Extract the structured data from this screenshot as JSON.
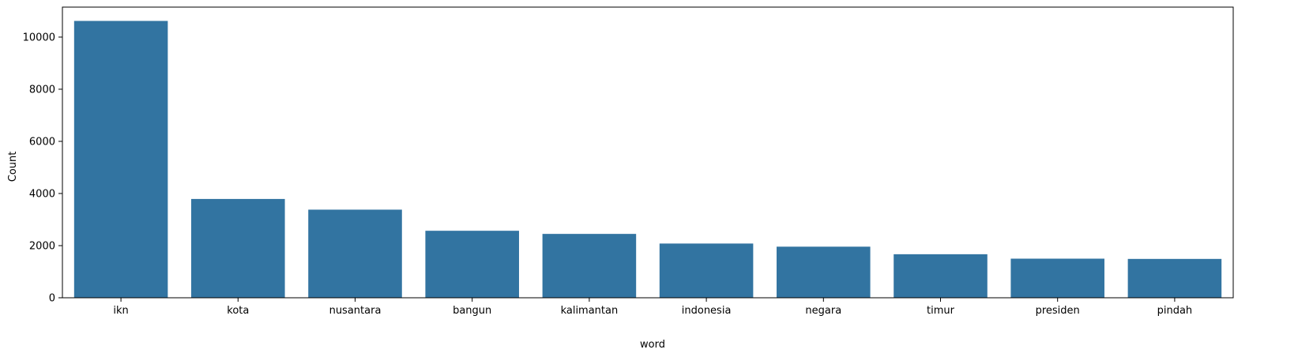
{
  "chart_data": {
    "type": "bar",
    "title": "",
    "xlabel": "word",
    "ylabel": "Count",
    "categories": [
      "ikn",
      "kota",
      "nusantara",
      "bangun",
      "kalimantan",
      "indonesia",
      "negara",
      "timur",
      "presiden",
      "pindah"
    ],
    "values": [
      10620,
      3790,
      3380,
      2570,
      2450,
      2080,
      1960,
      1670,
      1500,
      1490
    ],
    "ylim": [
      0,
      11150
    ],
    "yticks": [
      0,
      2000,
      4000,
      6000,
      8000,
      10000
    ],
    "grid": false,
    "legend": "none",
    "bar_color": "#3274a1",
    "edge_color": "#1f4f70"
  }
}
